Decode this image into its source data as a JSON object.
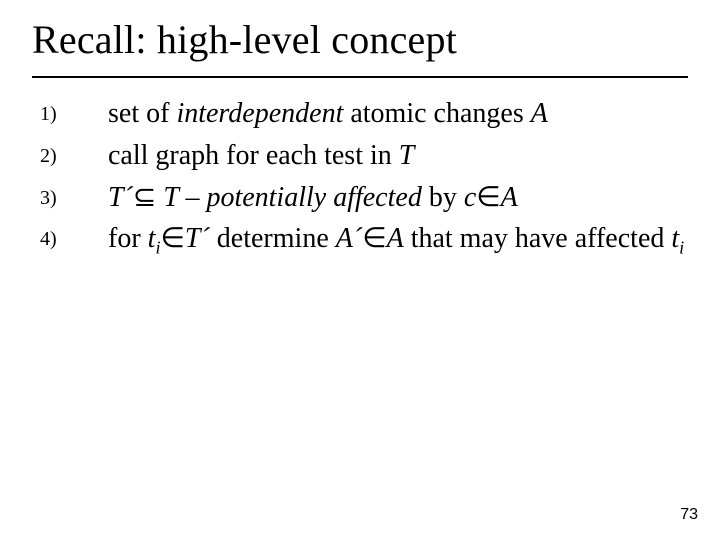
{
  "title": "Recall: high-level concept",
  "page_number": "73",
  "colors": {
    "background": "#ffffff",
    "text": "#000000",
    "rule": "#000000"
  },
  "typography": {
    "title_fontsize_pt": 40,
    "body_fontsize_pt": 28,
    "number_fontsize_pt": 20,
    "page_number_fontsize_pt": 16,
    "font_family": "Times New Roman"
  },
  "list": {
    "numbers": [
      "1)",
      "2)",
      "3)",
      "4)"
    ],
    "items": {
      "i1": {
        "t1": "set of ",
        "t2": "interdependent",
        "t3": " atomic changes ",
        "t4": "A"
      },
      "i2": {
        "t1": "call graph for each test in ",
        "t2": "T"
      },
      "i3": {
        "t1": "T´",
        "t2": "⊆",
        "t3": " T – potentially affected",
        "t4": " by ",
        "t5": "c",
        "t6": "∈",
        "t7": "A"
      },
      "i4": {
        "t1": "for ",
        "t2": "t",
        "t3": "i",
        "t4": "∈",
        "t5": "T´",
        "t6": " determine ",
        "t7": "A´",
        "t8": "∈",
        "t9": "A",
        "t10": " that may have affected ",
        "t11": "t",
        "t12": "i"
      }
    }
  }
}
